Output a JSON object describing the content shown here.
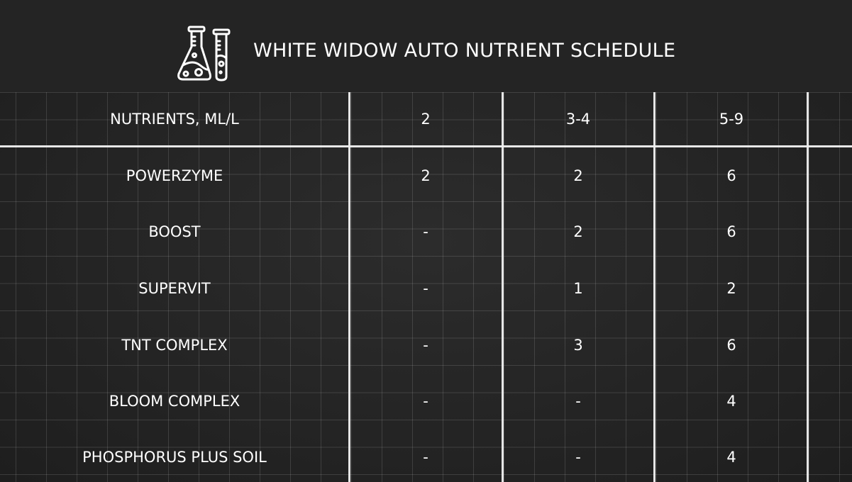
{
  "title": "WHITE WIDOW AUTO NUTRIENT SCHEDULE",
  "icon": "lab-flask-test-tube-icon",
  "table": {
    "header": [
      "NUTRIENTS, ML/L",
      "2",
      "3-4",
      "5-9"
    ],
    "rows": [
      [
        "POWERZYME",
        "2",
        "2",
        "6"
      ],
      [
        "BOOST",
        "-",
        "2",
        "6"
      ],
      [
        "SUPERVIT",
        "-",
        "1",
        "2"
      ],
      [
        "TNT COMPLEX",
        "-",
        "3",
        "6"
      ],
      [
        "BLOOM COMPLEX",
        "-",
        "-",
        "4"
      ],
      [
        "PHOSPHORUS PLUS SOIL",
        "-",
        "-",
        "4"
      ]
    ]
  }
}
